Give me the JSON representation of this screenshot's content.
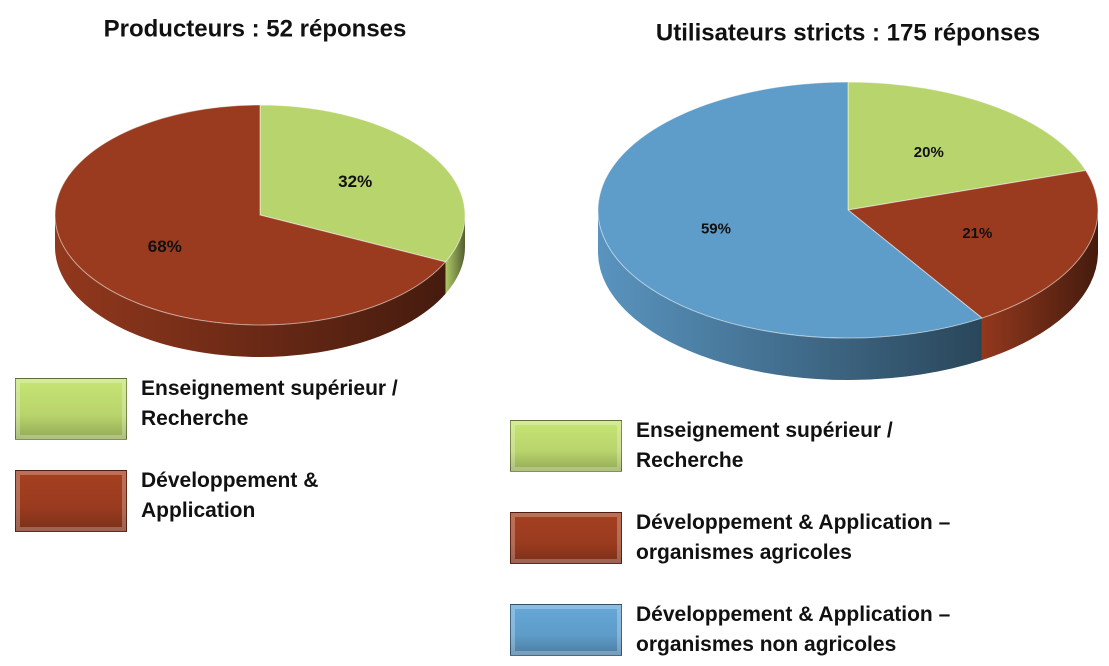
{
  "chart_data": [
    {
      "type": "pie",
      "title": "Producteurs : 52 réponses",
      "series": [
        {
          "name": "Enseignement supérieur / Recherche",
          "color": "#b8d46c",
          "values": [
            32
          ],
          "value_labels": [
            "32%"
          ]
        },
        {
          "name": "Développement & Application",
          "color": "#9a3b1f",
          "values": [
            68
          ],
          "value_labels": [
            "68%"
          ]
        }
      ]
    },
    {
      "type": "pie",
      "title": "Utilisateurs stricts : 175 réponses",
      "series": [
        {
          "name": "Enseignement supérieur / Recherche",
          "color": "#b8d46c",
          "values": [
            20
          ],
          "value_labels": [
            "20%"
          ]
        },
        {
          "name": "Développement & Application – organismes agricoles",
          "color": "#9a3b1f",
          "values": [
            21
          ],
          "value_labels": [
            "21%"
          ]
        },
        {
          "name": "Développement & Application – organismes non agricoles",
          "color": "#5e9cc9",
          "values": [
            59
          ],
          "value_labels": [
            "59%"
          ]
        }
      ]
    }
  ]
}
